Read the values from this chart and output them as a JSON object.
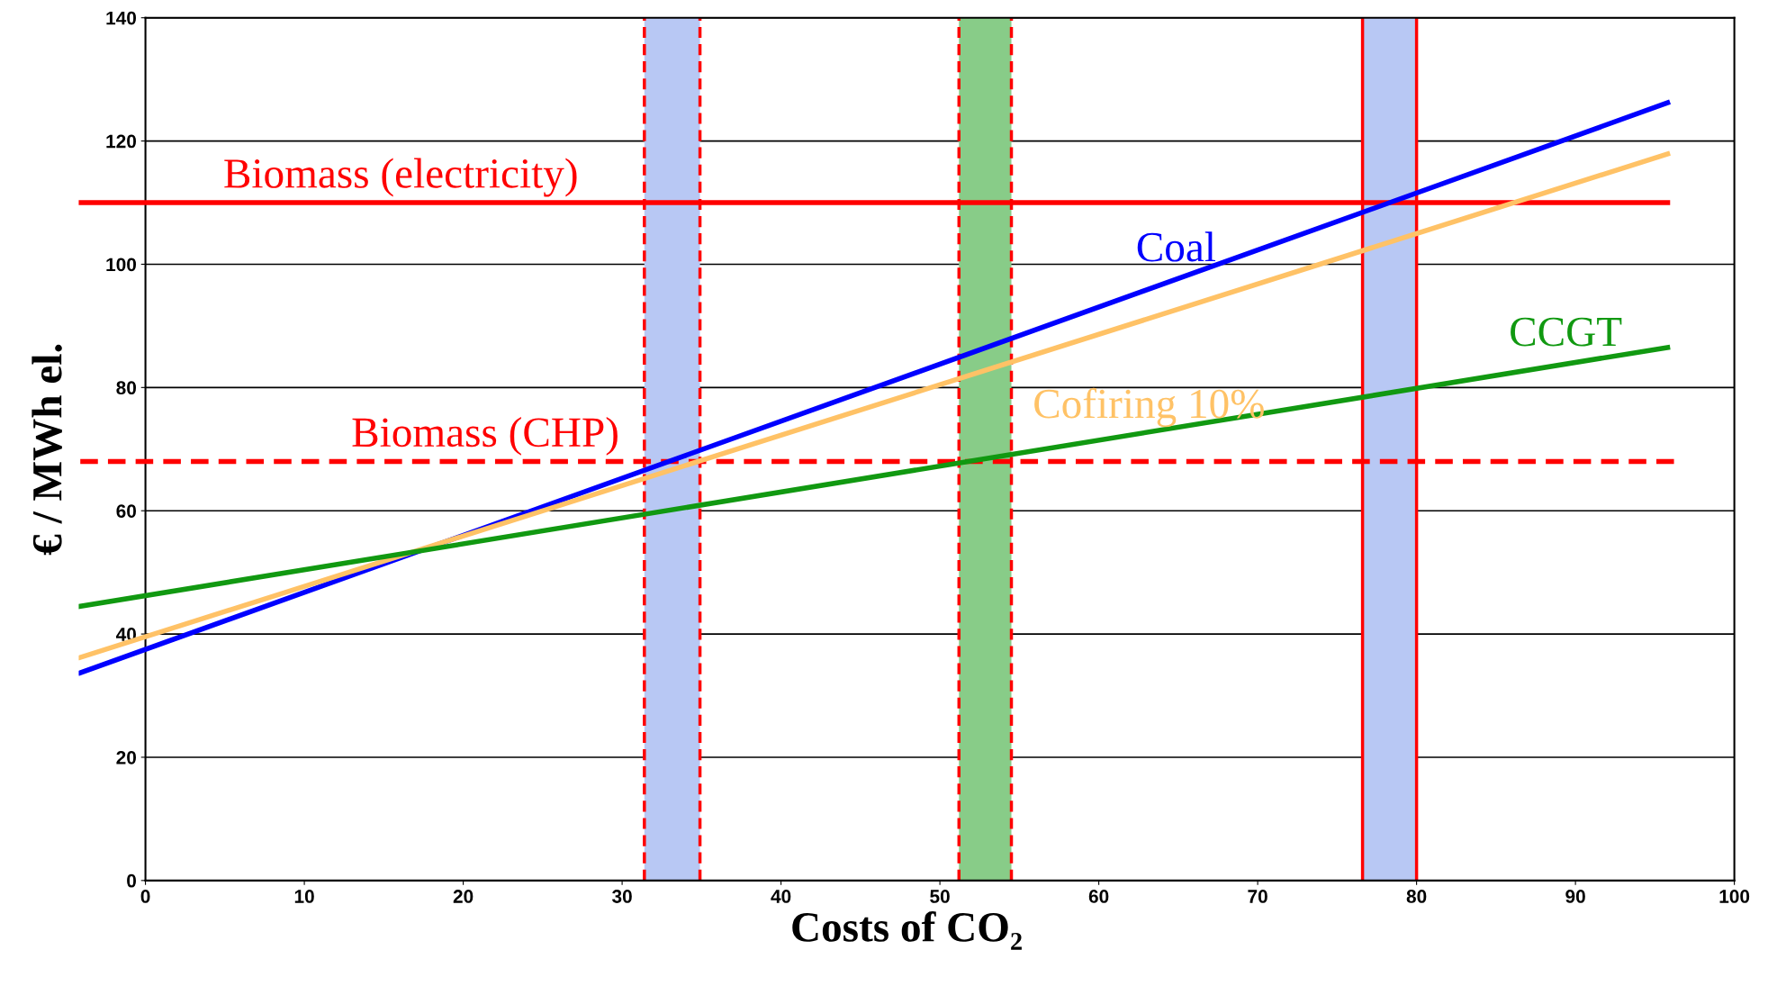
{
  "chart_data": {
    "type": "line",
    "xlabel": "Costs of CO₂",
    "ylabel": "€ / MWh el.",
    "series": [
      {
        "name": "Biomass (electricity)",
        "color": "#ff0000",
        "x": [
          -4.1,
          95.8
        ],
        "values": [
          110,
          110
        ]
      },
      {
        "name": "Biomass (CHP)",
        "color": "#ff0000",
        "x": [
          -4.1,
          96.2
        ],
        "values": [
          68,
          68
        ],
        "line_style": "dashed"
      },
      {
        "name": "Coal",
        "color": "#0000ff",
        "x": [
          -4.1,
          95.8
        ],
        "values": [
          33.7,
          126.2
        ]
      },
      {
        "name": "Cofiring 10%",
        "color": "#ffc266",
        "x": [
          -4.1,
          95.8
        ],
        "values": [
          36.2,
          117.9
        ]
      },
      {
        "name": "CCGT",
        "color": "#119911",
        "x": [
          -4.1,
          95.8
        ],
        "values": [
          44.5,
          86.5
        ]
      }
    ],
    "bands": [
      {
        "axis": "x",
        "from": 31.4,
        "to": 34.9,
        "color": "#b8c8f4"
      },
      {
        "axis": "x",
        "from": 51.2,
        "to": 54.5,
        "color": "#88cc88"
      },
      {
        "axis": "x",
        "from": 76.6,
        "to": 80.0,
        "color": "#b8c8f4"
      }
    ],
    "ref_lines": [
      {
        "axis": "x",
        "value": 31.4,
        "color": "#ff0000",
        "line_style": "dashed"
      },
      {
        "axis": "x",
        "value": 34.9,
        "color": "#ff0000",
        "line_style": "dashed"
      },
      {
        "axis": "x",
        "value": 51.2,
        "color": "#ff0000",
        "line_style": "dashed"
      },
      {
        "axis": "x",
        "value": 54.5,
        "color": "#ff0000",
        "line_style": "dashed"
      },
      {
        "axis": "x",
        "value": 76.6,
        "color": "#ff0000",
        "line_style": "solid"
      },
      {
        "axis": "x",
        "value": 80.0,
        "color": "#ff0000",
        "line_style": "solid"
      }
    ],
    "xlim": [
      -4.2,
      100
    ],
    "xticks": [
      0,
      10,
      20,
      30,
      40,
      50,
      60,
      70,
      80,
      90,
      100
    ],
    "ylim": [
      0,
      140
    ],
    "yticks": [
      0,
      20,
      40,
      60,
      80,
      100,
      120,
      140
    ],
    "grid": "y",
    "legend": false
  }
}
